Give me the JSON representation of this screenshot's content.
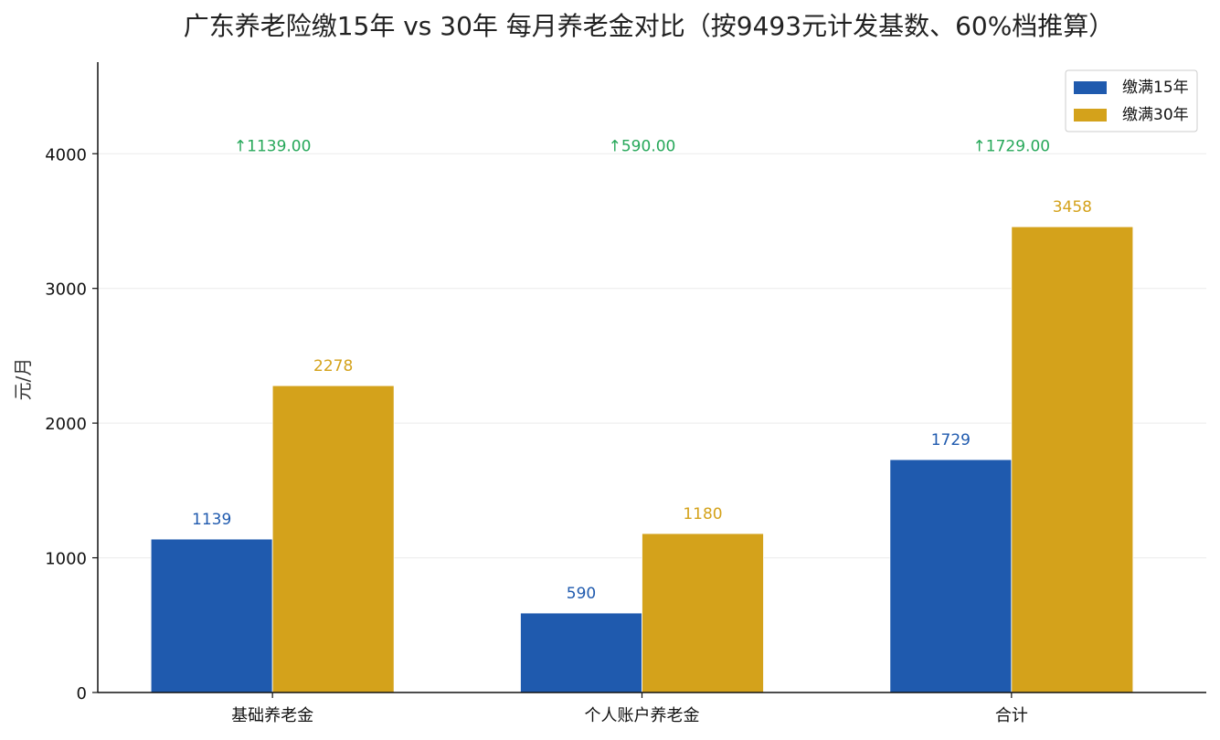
{
  "chart_data": {
    "type": "bar",
    "title": "广东养老险缴15年 vs 30年 每月养老金对比（按9493元计发基数、60%档推算）",
    "xlabel": "",
    "ylabel": "元/月",
    "categories": [
      "基础养老金",
      "个人账户养老金",
      "合计"
    ],
    "series": [
      {
        "name": "缴满15年",
        "values": [
          1139,
          590,
          1729
        ],
        "labels": [
          "1139",
          "590",
          "1729"
        ],
        "color": "#1f5aae"
      },
      {
        "name": "缴满30年",
        "values": [
          2278,
          1180,
          3458
        ],
        "labels": [
          "2278",
          "1180",
          "3458"
        ],
        "color": "#d4a21b"
      }
    ],
    "differences": [
      "↑1139.00",
      "↑590.00",
      "↑1729.00"
    ],
    "difference_color": "#27a85a",
    "ylim": [
      0,
      4680
    ],
    "yticks": [
      0,
      1000,
      2000,
      3000,
      4000
    ],
    "grid": true,
    "legend_position": "top-right"
  }
}
